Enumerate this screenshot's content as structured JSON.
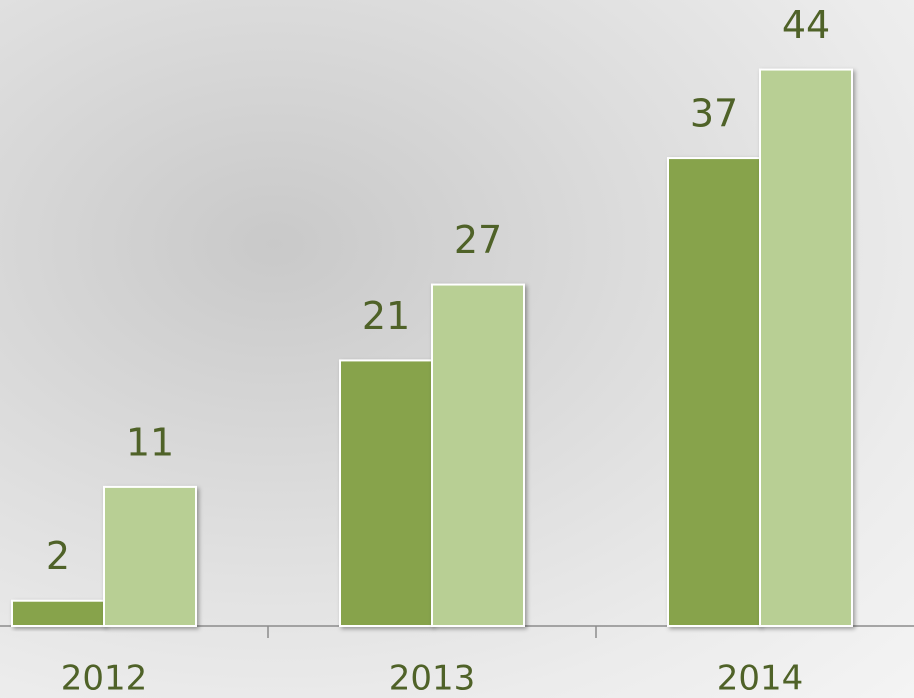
{
  "chart_data": {
    "type": "bar",
    "categories": [
      "2012",
      "2013",
      "2014"
    ],
    "series": [
      {
        "color": "#87a34c",
        "values": [
          2,
          21,
          37
        ]
      },
      {
        "color": "#b8cf94",
        "values": [
          11,
          27,
          44
        ]
      }
    ],
    "ylim": [
      0,
      49.5
    ]
  }
}
